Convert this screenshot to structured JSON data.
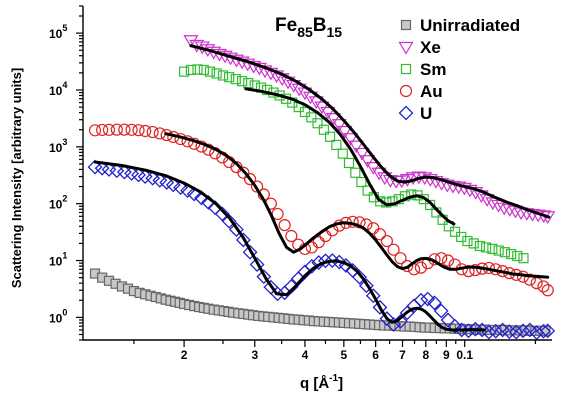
{
  "chart_data": {
    "type": "scatter",
    "title_main": "Fe",
    "title_sub1": "85",
    "title_mid": "B",
    "title_sub2": "15",
    "xlabel_main": "q [Å",
    "xlabel_sup": "-1",
    "xlabel_end": "]",
    "ylabel": "Scattering Intensity [arbitrary units]",
    "x_scale": "log",
    "y_scale": "log",
    "xlim": [
      0.0112,
      0.165
    ],
    "ylim": [
      0.4,
      300000
    ],
    "x_tick_labels": [
      {
        "value": 0.02,
        "label": "2"
      },
      {
        "value": 0.03,
        "label": "3"
      },
      {
        "value": 0.04,
        "label": "4"
      },
      {
        "value": 0.05,
        "label": "5"
      },
      {
        "value": 0.06,
        "label": "6"
      },
      {
        "value": 0.07,
        "label": "7"
      },
      {
        "value": 0.08,
        "label": "8"
      },
      {
        "value": 0.09,
        "label": "9"
      },
      {
        "value": 0.1,
        "label": "0.1"
      }
    ],
    "y_tick_labels": [
      {
        "value": 1,
        "base": "10",
        "exp": "0"
      },
      {
        "value": 10,
        "base": "10",
        "exp": "1"
      },
      {
        "value": 100,
        "base": "10",
        "exp": "2"
      },
      {
        "value": 1000,
        "base": "10",
        "exp": "3"
      },
      {
        "value": 10000,
        "base": "10",
        "exp": "4"
      },
      {
        "value": 100000,
        "base": "10",
        "exp": "5"
      }
    ],
    "legend_position": "top-right",
    "grid": false,
    "series": [
      {
        "name": "Unirradiated",
        "marker": "square",
        "color": "#666666",
        "fill": "#c8c8c8",
        "x": [
          0.012,
          0.0125,
          0.013,
          0.0135,
          0.014,
          0.0145,
          0.015,
          0.0155,
          0.016,
          0.0165,
          0.017,
          0.0175,
          0.018,
          0.0185,
          0.019,
          0.0195,
          0.02,
          0.0206,
          0.0212,
          0.0218,
          0.0224,
          0.023,
          0.0237,
          0.0244,
          0.0251,
          0.0258,
          0.0265,
          0.0273,
          0.0281,
          0.0289,
          0.0297,
          0.0306,
          0.0315,
          0.0324,
          0.0334,
          0.0344,
          0.0354,
          0.0364,
          0.0375,
          0.0386,
          0.0397,
          0.0409,
          0.0421,
          0.0433,
          0.0446,
          0.0459,
          0.0472,
          0.0486,
          0.05,
          0.0515,
          0.053,
          0.0546,
          0.0562,
          0.0578,
          0.0595,
          0.0612,
          0.063,
          0.0649,
          0.0668,
          0.0688,
          0.0708,
          0.0729,
          0.075,
          0.0772,
          0.0795,
          0.0818,
          0.0842,
          0.0867,
          0.0892,
          0.0918,
          0.0945,
          0.0973,
          0.1002,
          0.1031,
          0.1061,
          0.1092,
          0.1124,
          0.1157,
          0.1191,
          0.1226,
          0.1262,
          0.1299,
          0.1337,
          0.1376,
          0.1416,
          0.1458,
          0.15,
          0.1544,
          0.1589
        ],
        "y": [
          5.9,
          5.0,
          4.4,
          3.9,
          3.5,
          3.2,
          2.9,
          2.7,
          2.55,
          2.4,
          2.28,
          2.16,
          2.05,
          1.96,
          1.88,
          1.8,
          1.72,
          1.65,
          1.58,
          1.52,
          1.47,
          1.42,
          1.37,
          1.33,
          1.29,
          1.25,
          1.21,
          1.18,
          1.15,
          1.12,
          1.09,
          1.06,
          1.04,
          1.02,
          1.0,
          0.98,
          0.96,
          0.94,
          0.92,
          0.91,
          0.89,
          0.88,
          0.86,
          0.85,
          0.84,
          0.83,
          0.82,
          0.81,
          0.8,
          0.79,
          0.78,
          0.77,
          0.76,
          0.75,
          0.74,
          0.73,
          0.72,
          0.72,
          0.71,
          0.7,
          0.69,
          0.69,
          0.68,
          0.67,
          0.66,
          0.66,
          0.65,
          0.65,
          0.64,
          0.64,
          0.63,
          0.63,
          0.62,
          0.62,
          0.61,
          0.61,
          0.61,
          0.6,
          0.6,
          0.6,
          0.6,
          0.59,
          0.59,
          0.59,
          0.59,
          0.58,
          0.58,
          0.58,
          0.58
        ]
      },
      {
        "name": "Xe",
        "marker": "triangle-down",
        "color": "#cc33cc",
        "fill": "none",
        "x": [
          0.0208,
          0.0215,
          0.0222,
          0.0229,
          0.0237,
          0.0245,
          0.0253,
          0.0261,
          0.027,
          0.0279,
          0.0288,
          0.0298,
          0.0308,
          0.0318,
          0.0329,
          0.034,
          0.0351,
          0.0363,
          0.0375,
          0.0387,
          0.04,
          0.0413,
          0.0427,
          0.0441,
          0.0456,
          0.0471,
          0.0487,
          0.0503,
          0.052,
          0.0537,
          0.0555,
          0.0573,
          0.0592,
          0.0612,
          0.0632,
          0.0653,
          0.0675,
          0.0697,
          0.072,
          0.0744,
          0.0769,
          0.0795,
          0.0821,
          0.0848,
          0.0876,
          0.0905,
          0.0935,
          0.0966,
          0.0998,
          0.1031,
          0.1065,
          0.11,
          0.1137,
          0.1175,
          0.1214,
          0.1254,
          0.1295,
          0.1338,
          0.1382,
          0.1428,
          0.1475,
          0.1524,
          0.1574,
          0.161
        ],
        "y": [
          75000,
          62000,
          58000,
          52000,
          47000,
          43000,
          40000,
          37000,
          34000,
          31500,
          29000,
          26500,
          24500,
          22000,
          20000,
          18000,
          16000,
          14000,
          12200,
          10500,
          9000,
          7600,
          6300,
          5100,
          4100,
          3200,
          2500,
          1900,
          1420,
          1050,
          780,
          580,
          440,
          350,
          290,
          260,
          250,
          255,
          270,
          290,
          300,
          290,
          270,
          250,
          230,
          215,
          205,
          200,
          190,
          175,
          160,
          140,
          120,
          105,
          95,
          85,
          80,
          75,
          70,
          68,
          66,
          64,
          62,
          60
        ]
      },
      {
        "name": "Sm",
        "marker": "square",
        "color": "#33bb33",
        "fill": "none",
        "x": [
          0.02,
          0.0208,
          0.0216,
          0.0224,
          0.0232,
          0.0241,
          0.025,
          0.0259,
          0.0269,
          0.0279,
          0.0289,
          0.03,
          0.0311,
          0.0322,
          0.0334,
          0.0346,
          0.0359,
          0.0372,
          0.0386,
          0.04,
          0.0415,
          0.043,
          0.0446,
          0.0462,
          0.0479,
          0.0497,
          0.0515,
          0.0534,
          0.0553,
          0.0573,
          0.0594,
          0.0616,
          0.0638,
          0.0661,
          0.0685,
          0.071,
          0.0736,
          0.0763,
          0.0791,
          0.082,
          0.085,
          0.0881,
          0.0913,
          0.0946,
          0.098,
          0.1016,
          0.1053,
          0.1091,
          0.1131,
          0.1172,
          0.1215,
          0.1259,
          0.1305,
          0.1352,
          0.1401
        ],
        "y": [
          21000,
          22500,
          23000,
          22500,
          21000,
          19500,
          18000,
          16800,
          15500,
          14300,
          13200,
          12000,
          11000,
          10000,
          9000,
          8000,
          7000,
          6000,
          5000,
          4100,
          3300,
          2600,
          2000,
          1500,
          1080,
          760,
          520,
          350,
          240,
          170,
          130,
          110,
          105,
          110,
          120,
          135,
          145,
          140,
          120,
          95,
          70,
          52,
          40,
          32,
          26,
          22,
          20,
          18,
          17,
          16,
          15,
          14,
          13,
          12,
          11
        ]
      },
      {
        "name": "Au",
        "marker": "circle",
        "color": "#dd2222",
        "fill": "none",
        "x": [
          0.012,
          0.0125,
          0.013,
          0.0136,
          0.0142,
          0.0148,
          0.0154,
          0.016,
          0.0167,
          0.0174,
          0.0181,
          0.0188,
          0.0196,
          0.0204,
          0.0212,
          0.0221,
          0.023,
          0.0239,
          0.0249,
          0.0259,
          0.027,
          0.0281,
          0.0292,
          0.0304,
          0.0316,
          0.0329,
          0.0342,
          0.0356,
          0.037,
          0.0385,
          0.04,
          0.0416,
          0.0433,
          0.045,
          0.0468,
          0.0487,
          0.0506,
          0.0526,
          0.0547,
          0.0569,
          0.0592,
          0.0615,
          0.064,
          0.0665,
          0.0692,
          0.0719,
          0.0748,
          0.0778,
          0.0809,
          0.0841,
          0.0874,
          0.0909,
          0.0945,
          0.0983,
          0.1022,
          0.1063,
          0.1105,
          0.1149,
          0.1195,
          0.1243,
          0.1292,
          0.1344,
          0.1397,
          0.1453,
          0.1511,
          0.1571,
          0.161
        ],
        "y": [
          1950,
          1980,
          1990,
          2000,
          2000,
          1990,
          1960,
          1900,
          1820,
          1720,
          1610,
          1490,
          1370,
          1250,
          1130,
          1010,
          890,
          770,
          650,
          540,
          440,
          350,
          270,
          200,
          145,
          100,
          66,
          42,
          27,
          19,
          16,
          17,
          21,
          27,
          34,
          41,
          46,
          48,
          47,
          43,
          37,
          29,
          22,
          15.5,
          11,
          8,
          7,
          7.5,
          9,
          10.5,
          11,
          10,
          8.5,
          7,
          6.5,
          6.8,
          7.2,
          7.4,
          7,
          6.5,
          6,
          5.6,
          5.2,
          4.6,
          4.0,
          3.5,
          3.0
        ]
      },
      {
        "name": "U",
        "marker": "diamond",
        "color": "#2222cc",
        "fill": "none",
        "x": [
          0.012,
          0.0125,
          0.013,
          0.0136,
          0.0142,
          0.0148,
          0.0154,
          0.016,
          0.0167,
          0.0174,
          0.0181,
          0.0188,
          0.0196,
          0.0204,
          0.0212,
          0.0221,
          0.023,
          0.0239,
          0.0249,
          0.0259,
          0.027,
          0.0281,
          0.0292,
          0.0304,
          0.0316,
          0.0329,
          0.0342,
          0.0356,
          0.037,
          0.0385,
          0.04,
          0.0416,
          0.0433,
          0.045,
          0.0468,
          0.0487,
          0.0506,
          0.0526,
          0.0547,
          0.0569,
          0.0592,
          0.0615,
          0.064,
          0.0665,
          0.0692,
          0.0719,
          0.0748,
          0.0778,
          0.0809,
          0.0841,
          0.0874,
          0.0909,
          0.0945,
          0.0983,
          0.1022,
          0.1063,
          0.1105,
          0.1149,
          0.1195,
          0.1243,
          0.1292,
          0.1344,
          0.1397,
          0.1453,
          0.1511,
          0.1571,
          0.161
        ],
        "y": [
          440,
          420,
          400,
          380,
          360,
          340,
          320,
          300,
          280,
          258,
          236,
          214,
          192,
          170,
          148,
          126,
          105,
          85,
          66,
          49,
          35,
          23,
          14,
          8.5,
          5.2,
          3.4,
          2.6,
          2.7,
          3.5,
          4.8,
          6.3,
          7.9,
          9.2,
          9.9,
          10,
          9.4,
          8.2,
          6.7,
          5.1,
          3.6,
          2.4,
          1.5,
          0.95,
          0.75,
          0.85,
          1.2,
          1.6,
          2.0,
          2.1,
          1.8,
          1.3,
          0.9,
          0.7,
          0.6,
          0.58,
          0.62,
          0.6,
          0.55,
          0.57,
          0.6,
          0.56,
          0.55,
          0.58,
          0.6,
          0.54,
          0.57,
          0.58
        ]
      }
    ],
    "fits": [
      {
        "for": "Xe",
        "x": [
          0.0208,
          0.023,
          0.026,
          0.029,
          0.032,
          0.035,
          0.038,
          0.041,
          0.044,
          0.047,
          0.05,
          0.053,
          0.056,
          0.059,
          0.062,
          0.065,
          0.068,
          0.071,
          0.074,
          0.077,
          0.08,
          0.084,
          0.088,
          0.092,
          0.096,
          0.1,
          0.105,
          0.11,
          0.116,
          0.122,
          0.128,
          0.135,
          0.142,
          0.15,
          0.158,
          0.162
        ],
        "y": [
          60000,
          50000,
          39000,
          31000,
          24500,
          19000,
          14200,
          10200,
          7000,
          4600,
          2900,
          1800,
          1100,
          680,
          440,
          310,
          250,
          240,
          255,
          280,
          295,
          285,
          260,
          235,
          215,
          200,
          185,
          165,
          140,
          120,
          105,
          92,
          80,
          70,
          62,
          58
        ]
      },
      {
        "for": "Sm",
        "x": [
          0.0285,
          0.031,
          0.034,
          0.037,
          0.04,
          0.043,
          0.046,
          0.049,
          0.052,
          0.055,
          0.058,
          0.061,
          0.064,
          0.067,
          0.07,
          0.073,
          0.076,
          0.079,
          0.082,
          0.085,
          0.088,
          0.091,
          0.094
        ],
        "y": [
          10500,
          9500,
          8300,
          7000,
          5500,
          4000,
          2700,
          1650,
          900,
          450,
          220,
          120,
          95,
          100,
          115,
          130,
          138,
          128,
          105,
          80,
          62,
          50,
          44
        ]
      },
      {
        "for": "Au",
        "x": [
          0.018,
          0.0195,
          0.021,
          0.0225,
          0.024,
          0.0255,
          0.027,
          0.0285,
          0.03,
          0.0315,
          0.033,
          0.0345,
          0.036,
          0.0375,
          0.039,
          0.0405,
          0.042,
          0.044,
          0.046,
          0.048,
          0.05,
          0.052,
          0.054,
          0.056,
          0.058,
          0.06,
          0.062,
          0.064,
          0.066,
          0.068,
          0.07,
          0.072,
          0.074,
          0.076,
          0.078,
          0.08,
          0.083,
          0.086,
          0.089,
          0.092,
          0.095,
          0.098,
          0.101,
          0.105,
          0.11,
          0.115,
          0.12,
          0.126,
          0.132,
          0.138,
          0.144,
          0.15,
          0.156,
          0.161
        ],
        "y": [
          1700,
          1500,
          1300,
          1100,
          900,
          700,
          510,
          340,
          210,
          120,
          62,
          30,
          17,
          14,
          16,
          20,
          25,
          32,
          39,
          44,
          46,
          45,
          42,
          37,
          30,
          23,
          17,
          12.5,
          9.5,
          7.8,
          7.2,
          7.6,
          8.8,
          10,
          10.8,
          10.9,
          10.2,
          8.8,
          7.6,
          7.0,
          7.0,
          7.3,
          7.6,
          7.7,
          7.4,
          7.0,
          6.6,
          6.2,
          5.8,
          5.6,
          5.4,
          5.3,
          5.2,
          5.1
        ]
      },
      {
        "for": "U",
        "x": [
          0.012,
          0.014,
          0.016,
          0.018,
          0.02,
          0.022,
          0.024,
          0.026,
          0.028,
          0.03,
          0.032,
          0.034,
          0.036,
          0.038,
          0.04,
          0.042,
          0.044,
          0.046,
          0.048,
          0.05,
          0.052,
          0.054,
          0.056,
          0.058,
          0.06,
          0.062,
          0.064,
          0.066,
          0.068,
          0.07,
          0.072,
          0.074,
          0.076,
          0.078,
          0.08,
          0.082,
          0.084,
          0.086,
          0.088,
          0.09,
          0.093,
          0.096,
          0.1,
          0.104,
          0.108,
          0.112
        ],
        "y": [
          540,
          470,
          390,
          310,
          230,
          160,
          100,
          55,
          26,
          11,
          4.8,
          2.6,
          2.5,
          3.6,
          5.4,
          7.3,
          8.9,
          9.7,
          9.8,
          9.2,
          8.0,
          6.4,
          4.7,
          3.2,
          2.1,
          1.35,
          0.95,
          0.82,
          0.88,
          1.05,
          1.25,
          1.4,
          1.45,
          1.4,
          1.25,
          1.05,
          0.88,
          0.74,
          0.66,
          0.62,
          0.6,
          0.6,
          0.6,
          0.61,
          0.61,
          0.6
        ]
      }
    ]
  }
}
